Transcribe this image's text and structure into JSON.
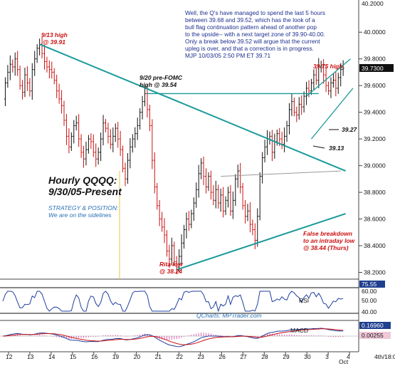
{
  "chart_data": {
    "type": "candlestick",
    "title": "Hourly QQQQ:",
    "subtitle": "9/30/05-Present",
    "strategy_heading": "STRATEGY & POSITION:",
    "strategy_text": "We are on the sidelines",
    "commentary": [
      "Well, the Q's have managed to spend the last 5 hours",
      "between 39.68 and 39.52, which has the look of a",
      "bull flag continuation pattern ahead of another pop",
      "to the upside-- with a next target zone of 39.90-40.00.",
      "Only a break below 39.52 will argue that the current",
      "upleg is over, and that a correction is in progress.",
      "MJP 10/03/05 2:50 PM ET 39.71"
    ],
    "x_labels": [
      "12",
      "13",
      "14",
      "15",
      "16",
      "19",
      "20",
      "21",
      "22",
      "23",
      "26",
      "27",
      "28",
      "29",
      "30",
      "3",
      "4"
    ],
    "x_extra_label": "Oct",
    "x_last_label": "4th/18:0",
    "y_axis": {
      "ticks": [
        "40.0000",
        "39.8000",
        "39.6000",
        "39.4000",
        "39.2000",
        "39.0000",
        "38.8000",
        "38.6000",
        "38.4000",
        "38.2000"
      ],
      "top_partial": "40.2000",
      "ylim": [
        38.16,
        40.22
      ]
    },
    "current_price": "39.7300",
    "annotations": {
      "high_913": [
        "9/13 high",
        "@ 39.91"
      ],
      "high_920": [
        "9/20 pre-FOMC",
        "high @ 39.54"
      ],
      "rita_low": [
        "Rita low",
        "@ 38.24"
      ],
      "false_breakdown": [
        "False breakdown",
        "to an intraday low",
        "@ 38.44 (Thurs)"
      ],
      "high_3975": "39.75 high",
      "lvl_3927": "39.27",
      "lvl_3913": "39.13"
    },
    "rsi": {
      "label": "RSI",
      "value_badge": "75.55",
      "ticks": [
        "60.00",
        "50.00",
        "40.00"
      ]
    },
    "macd": {
      "label": "MACD",
      "value_badge_1": "0.16960",
      "value_badge_2": "0.00255"
    },
    "credit": "QCharts: MPTrader.com",
    "price_path": [
      [
        0,
        39.5
      ],
      [
        2,
        39.62
      ],
      [
        4,
        39.7
      ],
      [
        6,
        39.76
      ],
      [
        8,
        39.74
      ],
      [
        10,
        39.8
      ],
      [
        12,
        39.72
      ],
      [
        14,
        39.6
      ],
      [
        16,
        39.55
      ],
      [
        18,
        39.68
      ],
      [
        20,
        39.62
      ],
      [
        22,
        39.56
      ],
      [
        24,
        39.72
      ],
      [
        26,
        39.8
      ],
      [
        28,
        39.88
      ],
      [
        30,
        39.91
      ],
      [
        32,
        39.84
      ],
      [
        34,
        39.78
      ],
      [
        36,
        39.74
      ],
      [
        38,
        39.72
      ],
      [
        40,
        39.7
      ],
      [
        42,
        39.64
      ],
      [
        44,
        39.56
      ],
      [
        46,
        39.5
      ],
      [
        48,
        39.45
      ],
      [
        50,
        39.34
      ],
      [
        52,
        39.22
      ],
      [
        54,
        39.14
      ],
      [
        56,
        39.22
      ],
      [
        58,
        39.3
      ],
      [
        60,
        39.32
      ],
      [
        62,
        39.2
      ],
      [
        64,
        39.1
      ],
      [
        66,
        39.05
      ],
      [
        68,
        39.12
      ],
      [
        70,
        39.2
      ],
      [
        72,
        39.18
      ],
      [
        74,
        39.1
      ],
      [
        76,
        39.05
      ],
      [
        78,
        39.1
      ],
      [
        80,
        39.2
      ],
      [
        82,
        39.32
      ],
      [
        84,
        39.28
      ],
      [
        86,
        39.22
      ],
      [
        88,
        39.16
      ],
      [
        90,
        39.22
      ],
      [
        92,
        39.28
      ],
      [
        94,
        39.2
      ],
      [
        96,
        39.12
      ],
      [
        98,
        38.98
      ],
      [
        100,
        38.9
      ],
      [
        102,
        39.04
      ],
      [
        104,
        39.14
      ],
      [
        106,
        39.2
      ],
      [
        108,
        39.24
      ],
      [
        110,
        39.3
      ],
      [
        112,
        39.4
      ],
      [
        114,
        39.48
      ],
      [
        116,
        39.54
      ],
      [
        118,
        39.42
      ],
      [
        120,
        39.3
      ],
      [
        122,
        39.04
      ],
      [
        124,
        38.84
      ],
      [
        126,
        38.7
      ],
      [
        128,
        38.6
      ],
      [
        130,
        38.54
      ],
      [
        132,
        38.48
      ],
      [
        134,
        38.36
      ],
      [
        136,
        38.3
      ],
      [
        138,
        38.4
      ],
      [
        140,
        38.28
      ],
      [
        142,
        38.24
      ],
      [
        144,
        38.32
      ],
      [
        146,
        38.42
      ],
      [
        148,
        38.52
      ],
      [
        150,
        38.6
      ],
      [
        152,
        38.56
      ],
      [
        154,
        38.64
      ],
      [
        156,
        38.72
      ],
      [
        158,
        38.82
      ],
      [
        160,
        38.94
      ],
      [
        162,
        39.02
      ],
      [
        164,
        38.92
      ],
      [
        166,
        38.84
      ],
      [
        168,
        38.92
      ],
      [
        170,
        38.8
      ],
      [
        172,
        38.74
      ],
      [
        174,
        38.82
      ],
      [
        176,
        38.72
      ],
      [
        178,
        38.78
      ],
      [
        180,
        38.66
      ],
      [
        182,
        38.74
      ],
      [
        184,
        38.8
      ],
      [
        186,
        38.66
      ],
      [
        188,
        38.74
      ],
      [
        190,
        38.9
      ],
      [
        192,
        38.96
      ],
      [
        194,
        38.84
      ],
      [
        196,
        38.7
      ],
      [
        198,
        38.62
      ],
      [
        200,
        38.66
      ],
      [
        202,
        38.56
      ],
      [
        204,
        38.52
      ],
      [
        206,
        38.44
      ],
      [
        208,
        38.62
      ],
      [
        210,
        38.92
      ],
      [
        212,
        39.06
      ],
      [
        214,
        39.14
      ],
      [
        216,
        39.2
      ],
      [
        218,
        39.22
      ],
      [
        220,
        39.1
      ],
      [
        222,
        39.18
      ],
      [
        224,
        39.24
      ],
      [
        226,
        39.2
      ],
      [
        228,
        39.16
      ],
      [
        230,
        39.22
      ],
      [
        232,
        39.3
      ],
      [
        234,
        39.42
      ],
      [
        236,
        39.48
      ],
      [
        238,
        39.4
      ],
      [
        240,
        39.38
      ],
      [
        242,
        39.46
      ],
      [
        244,
        39.44
      ],
      [
        246,
        39.52
      ],
      [
        248,
        39.58
      ],
      [
        250,
        39.56
      ],
      [
        252,
        39.62
      ],
      [
        254,
        39.68
      ],
      [
        256,
        39.64
      ],
      [
        258,
        39.74
      ],
      [
        260,
        39.75
      ],
      [
        262,
        39.68
      ],
      [
        264,
        39.6
      ],
      [
        266,
        39.56
      ],
      [
        268,
        39.62
      ],
      [
        270,
        39.64
      ],
      [
        272,
        39.58
      ],
      [
        274,
        39.66
      ],
      [
        276,
        39.72
      ],
      [
        278,
        39.73
      ]
    ],
    "trendlines": {
      "downtrend": [
        [
          30,
          39.91
        ],
        [
          280,
          38.96
        ]
      ],
      "rita_support": [
        [
          142,
          38.22
        ],
        [
          280,
          38.64
        ]
      ],
      "upper_triangle": [
        [
          178,
          38.92
        ],
        [
          276,
          38.96
        ]
      ],
      "horizontal_954": [
        [
          118,
          39.54
        ],
        [
          258,
          39.54
        ]
      ],
      "channel_upper": [
        [
          248,
          39.52
        ],
        [
          284,
          39.8
        ]
      ],
      "channel_lower": [
        [
          252,
          39.2
        ],
        [
          286,
          39.58
        ]
      ]
    }
  }
}
